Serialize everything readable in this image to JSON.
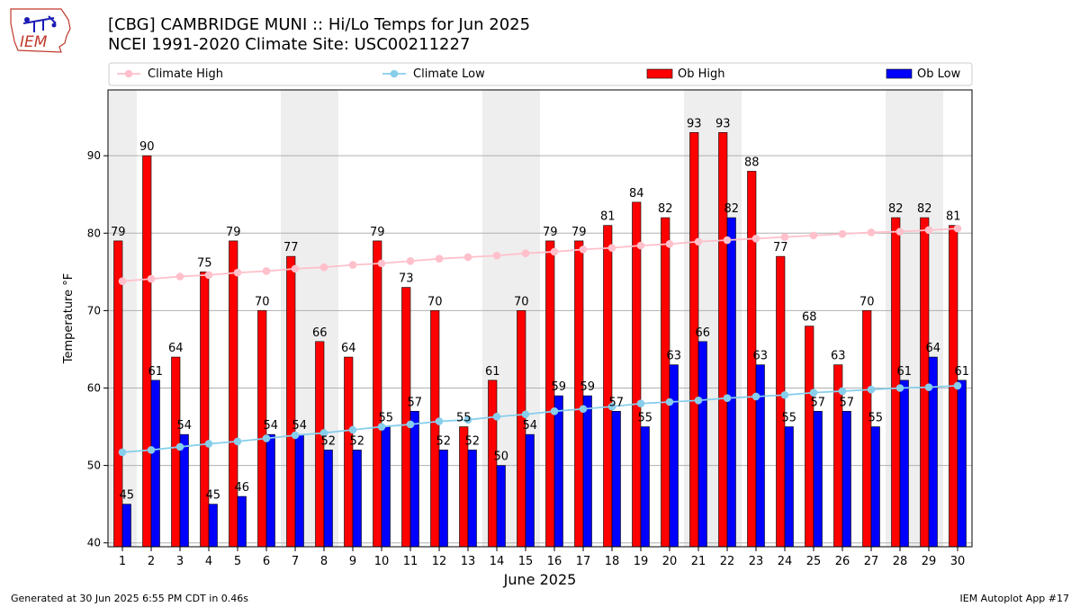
{
  "header": {
    "title_line1": "[CBG] CAMBRIDGE MUNI :: Hi/Lo Temps for Jun 2025",
    "title_line2": "NCEI 1991-2020 Climate Site: USC00211227",
    "logo_text": "IEM"
  },
  "footer": {
    "generated": "Generated at 30 Jun 2025 6:55 PM CDT in 0.46s",
    "app": "IEM Autoplot App #17"
  },
  "chart_data": {
    "type": "bar",
    "title": "[CBG] CAMBRIDGE MUNI :: Hi/Lo Temps for Jun 2025",
    "subtitle": "NCEI 1991-2020 Climate Site: USC00211227",
    "xlabel": "June 2025",
    "ylabel": "Temperature °F",
    "ylim": [
      39.5,
      98.5
    ],
    "yticks": [
      40,
      50,
      60,
      70,
      80,
      90
    ],
    "grid": true,
    "legend_position": "top",
    "categories": [
      "1",
      "2",
      "3",
      "4",
      "5",
      "6",
      "7",
      "8",
      "9",
      "10",
      "11",
      "12",
      "13",
      "14",
      "15",
      "16",
      "17",
      "18",
      "19",
      "20",
      "21",
      "22",
      "23",
      "24",
      "25",
      "26",
      "27",
      "28",
      "29",
      "30"
    ],
    "weekend_days": [
      1,
      7,
      8,
      14,
      15,
      21,
      22,
      28,
      29
    ],
    "series": [
      {
        "name": "Ob High",
        "kind": "bar",
        "color": "#ff0000",
        "values": [
          79,
          90,
          64,
          75,
          79,
          70,
          77,
          66,
          64,
          79,
          73,
          70,
          55,
          61,
          70,
          79,
          79,
          81,
          84,
          82,
          93,
          93,
          88,
          77,
          68,
          63,
          70,
          82,
          82,
          81
        ]
      },
      {
        "name": "Ob Low",
        "kind": "bar",
        "color": "#0000ff",
        "values": [
          45,
          61,
          54,
          45,
          46,
          54,
          54,
          52,
          52,
          55,
          57,
          52,
          52,
          50,
          54,
          59,
          59,
          57,
          55,
          63,
          66,
          82,
          63,
          55,
          57,
          57,
          55,
          61,
          64,
          61
        ]
      },
      {
        "name": "Climate High",
        "kind": "line",
        "color": "#ffc0cb",
        "values": [
          73.8,
          74.1,
          74.4,
          74.6,
          74.9,
          75.1,
          75.4,
          75.6,
          75.9,
          76.1,
          76.4,
          76.7,
          76.9,
          77.1,
          77.4,
          77.6,
          77.9,
          78.1,
          78.4,
          78.6,
          78.9,
          79.1,
          79.3,
          79.5,
          79.7,
          79.9,
          80.1,
          80.2,
          80.4,
          80.6
        ]
      },
      {
        "name": "Climate Low",
        "kind": "line",
        "color": "#87ceeb",
        "values": [
          51.7,
          52.0,
          52.4,
          52.8,
          53.1,
          53.5,
          53.9,
          54.2,
          54.6,
          55.0,
          55.3,
          55.7,
          55.9,
          56.3,
          56.6,
          57.0,
          57.3,
          57.6,
          58.0,
          58.2,
          58.4,
          58.7,
          58.9,
          59.1,
          59.4,
          59.6,
          59.8,
          60.0,
          60.1,
          60.3
        ]
      }
    ]
  }
}
